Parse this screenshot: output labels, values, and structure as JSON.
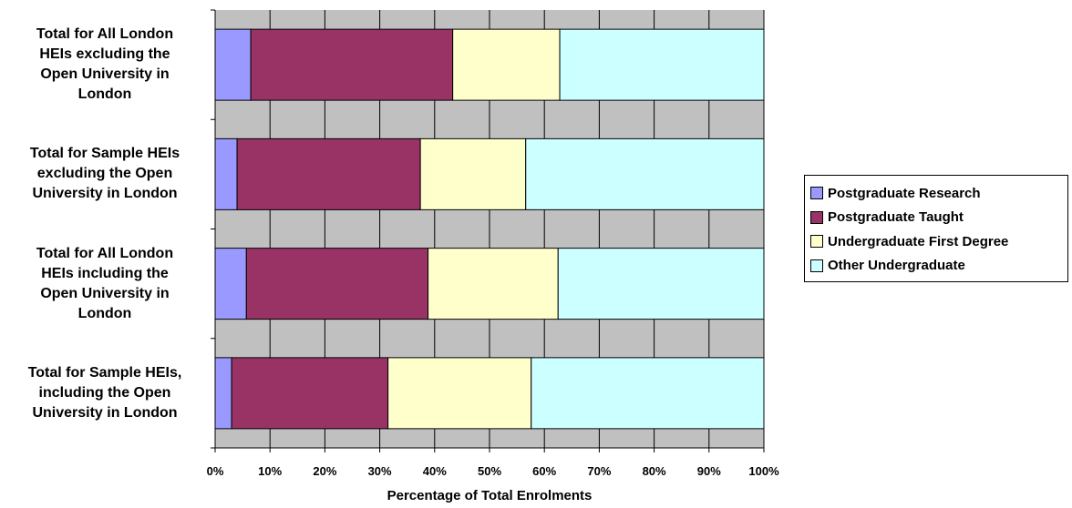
{
  "chart_data": {
    "type": "bar",
    "orientation": "horizontal",
    "stacked": "percent",
    "categories": [
      "Total for All London HEIs excluding the Open University in London",
      "Total for Sample HEIs excluding the Open University in London",
      "Total for All London HEIs including the Open University in London",
      "Total for Sample HEIs, including the Open University in London"
    ],
    "category_lines": [
      [
        "Total for All London",
        "HEIs excluding the",
        "Open University in",
        "London"
      ],
      [
        "Total for Sample HEIs",
        "excluding the Open",
        "University in London"
      ],
      [
        "Total for All London",
        "HEIs including the",
        "Open University in",
        "London"
      ],
      [
        "Total for Sample HEIs,",
        "including the Open",
        "University in London"
      ]
    ],
    "series": [
      {
        "name": "Postgraduate Research",
        "color": "#9999FF",
        "values": [
          6.5,
          4.0,
          5.7,
          3.0
        ]
      },
      {
        "name": "Postgraduate Taught",
        "color": "#993366",
        "values": [
          36.8,
          33.4,
          33.1,
          28.5
        ]
      },
      {
        "name": "Undergraduate First Degree",
        "color": "#FFFFCC",
        "values": [
          19.5,
          19.2,
          23.7,
          26.1
        ]
      },
      {
        "name": "Other Undergraduate",
        "color": "#CCFFFF",
        "values": [
          37.2,
          43.4,
          37.5,
          42.4
        ]
      }
    ],
    "xlim": [
      0,
      100
    ],
    "xticks": [
      "0%",
      "10%",
      "20%",
      "30%",
      "40%",
      "50%",
      "60%",
      "70%",
      "80%",
      "90%",
      "100%"
    ],
    "xlabel": "Percentage of Total Enrolments",
    "ylabel": "",
    "title": "",
    "grid": true,
    "plot_background": "#C0C0C0",
    "legend_position": "right"
  }
}
